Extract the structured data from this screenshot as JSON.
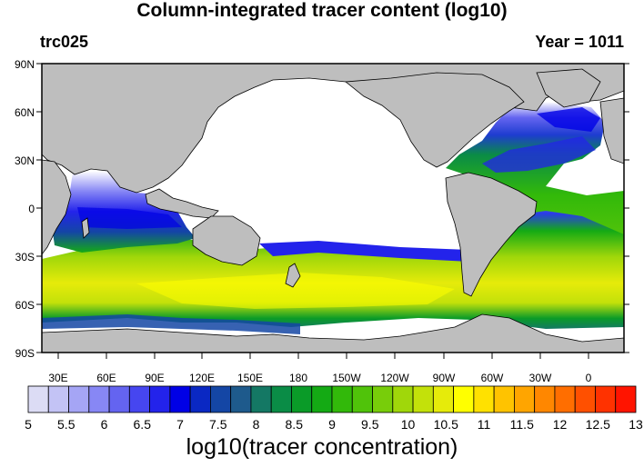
{
  "title": "Column-integrated tracer content (log10)",
  "left_label": "trc025",
  "right_label": "Year = 1011",
  "lat_labels": [
    "90N",
    "60N",
    "30N",
    "0",
    "30S",
    "60S",
    "90S"
  ],
  "lon_labels": [
    "30E",
    "60E",
    "90E",
    "120E",
    "150E",
    "180",
    "150W",
    "120W",
    "90W",
    "60W",
    "30W",
    "0"
  ],
  "colorbar": {
    "labels": [
      "5",
      "5.5",
      "6",
      "6.5",
      "7",
      "7.5",
      "8",
      "8.5",
      "9",
      "9.5",
      "10",
      "10.5",
      "11",
      "11.5",
      "12",
      "12.5",
      "13"
    ],
    "colors": [
      "#dcdcf5",
      "#c3c3f5",
      "#a5a5f5",
      "#8787f5",
      "#6464f0",
      "#4646f0",
      "#2323eb",
      "#0000e6",
      "#0a28c3",
      "#1446a5",
      "#1e5a8c",
      "#147864",
      "#0a8c46",
      "#0a9b28",
      "#14aa14",
      "#32b90a",
      "#50c30a",
      "#78cd0a",
      "#a0d70a",
      "#c3e10a",
      "#e6eb0a",
      "#ffff00",
      "#ffe100",
      "#ffc300",
      "#ffa500",
      "#ff8700",
      "#ff6e00",
      "#ff5000",
      "#ff3200",
      "#ff1400"
    ],
    "title": "log10(tracer concentration)"
  },
  "colors": {
    "land": "#bebebe",
    "missing": "#ffffff"
  }
}
